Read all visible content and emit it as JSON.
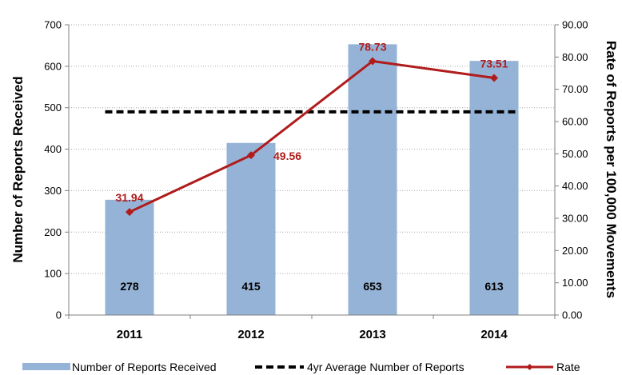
{
  "chart_data": {
    "type": "bar",
    "categories": [
      "2011",
      "2012",
      "2013",
      "2014"
    ],
    "ylabel": "Number of Reports Received",
    "y2label": "Rate of Reports per 100,000 Movements",
    "ylim": [
      0,
      700
    ],
    "yticks": [
      "0",
      "100",
      "200",
      "300",
      "400",
      "500",
      "600",
      "700"
    ],
    "y2lim": [
      0,
      90
    ],
    "y2ticks": [
      "0.00",
      "10.00",
      "20.00",
      "30.00",
      "40.00",
      "50.00",
      "60.00",
      "70.00",
      "80.00",
      "90.00"
    ],
    "grid": true,
    "legend_position": "bottom",
    "series": [
      {
        "name": "Number of Reports Received",
        "kind": "bar",
        "axis": "left",
        "values": [
          278,
          415,
          653,
          613
        ],
        "labels": [
          "278",
          "415",
          "653",
          "613"
        ],
        "color": "#95b3d7"
      },
      {
        "name": "4yr Average Number of Reports",
        "kind": "dashed-line",
        "axis": "left",
        "values": [
          490,
          490,
          490,
          490
        ],
        "color": "#000000"
      },
      {
        "name": "Rate",
        "kind": "line",
        "axis": "right",
        "values": [
          31.94,
          49.56,
          78.73,
          73.51
        ],
        "labels": [
          "31.94",
          "49.56",
          "78.73",
          "73.51"
        ],
        "color": "#b01c1c"
      }
    ]
  }
}
